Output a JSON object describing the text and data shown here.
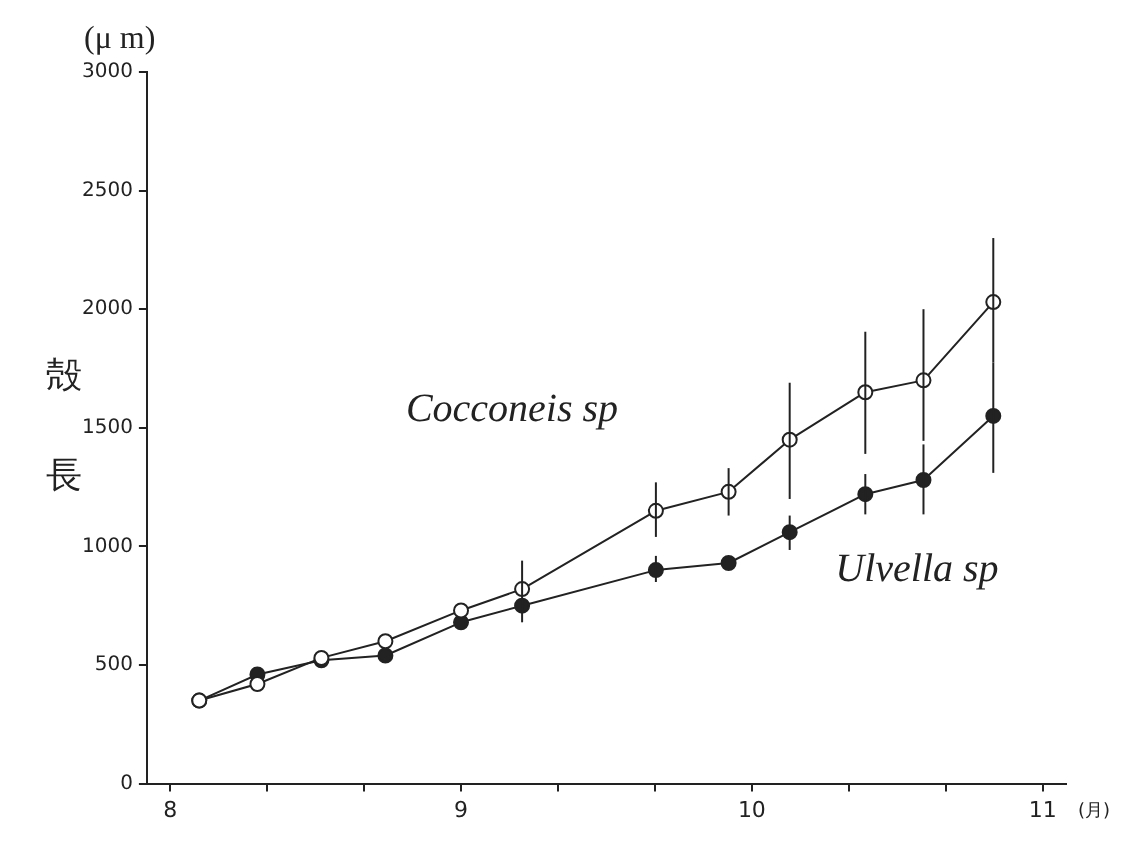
{
  "chart_data": {
    "type": "line",
    "ylabel": "殻長",
    "xlabel": "(月)",
    "annotations": [
      "(μ m)"
    ],
    "xlim": [
      7.92,
      11.08
    ],
    "xticks": [
      8,
      {
        "value": 8.333,
        "label": null
      },
      {
        "value": 8.667,
        "label": null
      },
      9,
      {
        "value": 9.333,
        "label": null
      },
      {
        "value": 9.667,
        "label": null
      },
      10,
      {
        "value": 10.333,
        "label": null
      },
      {
        "value": 10.667,
        "label": null
      },
      11
    ],
    "ylim": [
      0,
      3000
    ],
    "yticks": [
      0,
      500,
      1000,
      1500,
      2000,
      2500,
      3000
    ],
    "grid": false,
    "legend": false,
    "marker": "circle",
    "line_style": "solid",
    "x": [
      8.1,
      8.3,
      8.52,
      8.74,
      9.0,
      9.21,
      9.67,
      9.92,
      10.13,
      10.39,
      10.59,
      10.83
    ],
    "series": [
      {
        "name": "Cocconeis sp",
        "color": "#222222",
        "values": [
          350,
          420,
          530,
          600,
          730,
          820,
          1150,
          1230,
          1450,
          1650,
          1700,
          2030
        ],
        "errors": [
          null,
          null,
          null,
          null,
          null,
          [
            680,
            940
          ],
          [
            1040,
            1270
          ],
          [
            1130,
            1330
          ],
          [
            1200,
            1690
          ],
          [
            1390,
            1905
          ],
          [
            1445,
            2000
          ],
          [
            1775,
            2300
          ]
        ]
      },
      {
        "name": "Ulvella sp",
        "color": "#222222",
        "values": [
          350,
          460,
          520,
          540,
          680,
          750,
          900,
          930,
          1060,
          1220,
          1280,
          1550
        ],
        "errors": [
          null,
          null,
          null,
          null,
          null,
          null,
          [
            850,
            960
          ],
          null,
          [
            985,
            1130
          ],
          [
            1135,
            1305
          ],
          [
            1135,
            1430
          ],
          [
            1310,
            1775
          ]
        ]
      }
    ]
  }
}
